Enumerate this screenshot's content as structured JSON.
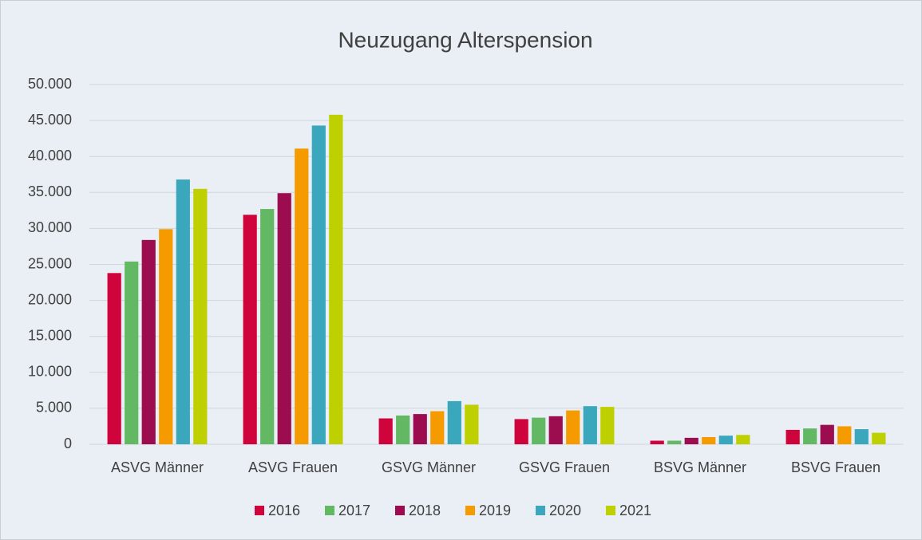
{
  "chart_data": {
    "type": "bar",
    "title": "Neuzugang Alterspension",
    "categories": [
      "ASVG Männer",
      "ASVG Frauen",
      "GSVG Männer",
      "GSVG Frauen",
      "BSVG Männer",
      "BSVG Frauen"
    ],
    "series": [
      {
        "name": "2016",
        "color": "#d0043c",
        "values": [
          23800,
          31900,
          3600,
          3500,
          500,
          2000
        ]
      },
      {
        "name": "2017",
        "color": "#63b863",
        "values": [
          25400,
          32700,
          4000,
          3700,
          500,
          2200
        ]
      },
      {
        "name": "2018",
        "color": "#9b0d4f",
        "values": [
          28400,
          34900,
          4200,
          3900,
          900,
          2700
        ]
      },
      {
        "name": "2019",
        "color": "#f59b00",
        "values": [
          29900,
          41100,
          4600,
          4700,
          1000,
          2500
        ]
      },
      {
        "name": "2020",
        "color": "#3aa7bd",
        "values": [
          36800,
          44300,
          6000,
          5300,
          1200,
          2100
        ]
      },
      {
        "name": "2021",
        "color": "#bed000",
        "values": [
          35500,
          45800,
          5500,
          5200,
          1300,
          1600
        ]
      }
    ],
    "ylim": [
      0,
      50000
    ],
    "yticks": [
      0,
      {
        "value": 5000,
        "label": "5.000"
      },
      {
        "value": 10000,
        "label": "10.000"
      },
      {
        "value": 15000,
        "label": "15.000"
      },
      {
        "value": 20000,
        "label": "20.000"
      },
      {
        "value": 25000,
        "label": "25.000"
      },
      {
        "value": 30000,
        "label": "30.000"
      },
      {
        "value": 35000,
        "label": "35.000"
      },
      {
        "value": 40000,
        "label": "40.000"
      },
      {
        "value": 45000,
        "label": "45.000"
      },
      {
        "value": 50000,
        "label": "50.000"
      }
    ],
    "grid": true,
    "legend": "bottom"
  }
}
